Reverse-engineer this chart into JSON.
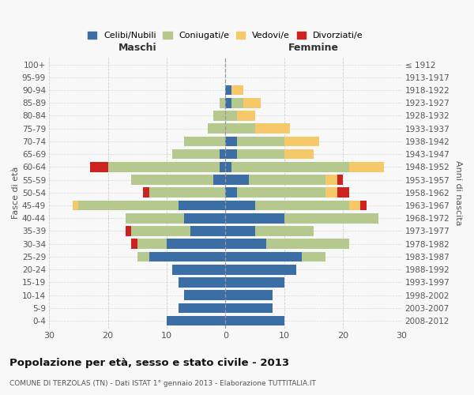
{
  "age_groups": [
    "0-4",
    "5-9",
    "10-14",
    "15-19",
    "20-24",
    "25-29",
    "30-34",
    "35-39",
    "40-44",
    "45-49",
    "50-54",
    "55-59",
    "60-64",
    "65-69",
    "70-74",
    "75-79",
    "80-84",
    "85-89",
    "90-94",
    "95-99",
    "100+"
  ],
  "birth_years": [
    "2008-2012",
    "2003-2007",
    "1998-2002",
    "1993-1997",
    "1988-1992",
    "1983-1987",
    "1978-1982",
    "1973-1977",
    "1968-1972",
    "1963-1967",
    "1958-1962",
    "1953-1957",
    "1948-1952",
    "1943-1947",
    "1938-1942",
    "1933-1937",
    "1928-1932",
    "1923-1927",
    "1918-1922",
    "1913-1917",
    "≤ 1912"
  ],
  "male": {
    "celibe": [
      10,
      8,
      7,
      8,
      9,
      13,
      10,
      6,
      7,
      8,
      0,
      2,
      1,
      1,
      0,
      0,
      0,
      0,
      0,
      0,
      0
    ],
    "coniugato": [
      0,
      0,
      0,
      0,
      0,
      2,
      5,
      10,
      10,
      17,
      13,
      14,
      19,
      8,
      7,
      3,
      2,
      1,
      0,
      0,
      0
    ],
    "vedovo": [
      0,
      0,
      0,
      0,
      0,
      0,
      0,
      0,
      0,
      1,
      0,
      0,
      0,
      0,
      0,
      0,
      0,
      0,
      0,
      0,
      0
    ],
    "divorziato": [
      0,
      0,
      0,
      0,
      0,
      0,
      1,
      1,
      0,
      0,
      1,
      0,
      3,
      0,
      0,
      0,
      0,
      0,
      0,
      0,
      0
    ]
  },
  "female": {
    "nubile": [
      10,
      8,
      8,
      10,
      12,
      13,
      7,
      5,
      10,
      5,
      2,
      4,
      1,
      2,
      2,
      0,
      0,
      1,
      1,
      0,
      0
    ],
    "coniugata": [
      0,
      0,
      0,
      0,
      0,
      4,
      14,
      10,
      16,
      16,
      15,
      13,
      20,
      8,
      8,
      5,
      2,
      2,
      0,
      0,
      0
    ],
    "vedova": [
      0,
      0,
      0,
      0,
      0,
      0,
      0,
      0,
      0,
      2,
      2,
      2,
      6,
      5,
      6,
      6,
      3,
      3,
      2,
      0,
      0
    ],
    "divorziata": [
      0,
      0,
      0,
      0,
      0,
      0,
      0,
      0,
      0,
      1,
      2,
      1,
      0,
      0,
      0,
      0,
      0,
      0,
      0,
      0,
      0
    ]
  },
  "colors": {
    "celibe": "#3b6ea5",
    "coniugato": "#b5c98e",
    "vedovo": "#f5c96a",
    "divorziato": "#cc2222"
  },
  "xlim": 30,
  "title": "Popolazione per età, sesso e stato civile - 2013",
  "subtitle": "COMUNE DI TERZOLAS (TN) - Dati ISTAT 1° gennaio 2013 - Elaborazione TUTTITALIA.IT",
  "ylabel_left": "Fasce di età",
  "ylabel_right": "Anni di nascita",
  "xlabel_left": "Maschi",
  "xlabel_right": "Femmine",
  "legend_labels": [
    "Celibi/Nubili",
    "Coniugati/e",
    "Vedovi/e",
    "Divorziati/e"
  ],
  "bg_color": "#f8f8f8",
  "grid_color": "#cccccc"
}
